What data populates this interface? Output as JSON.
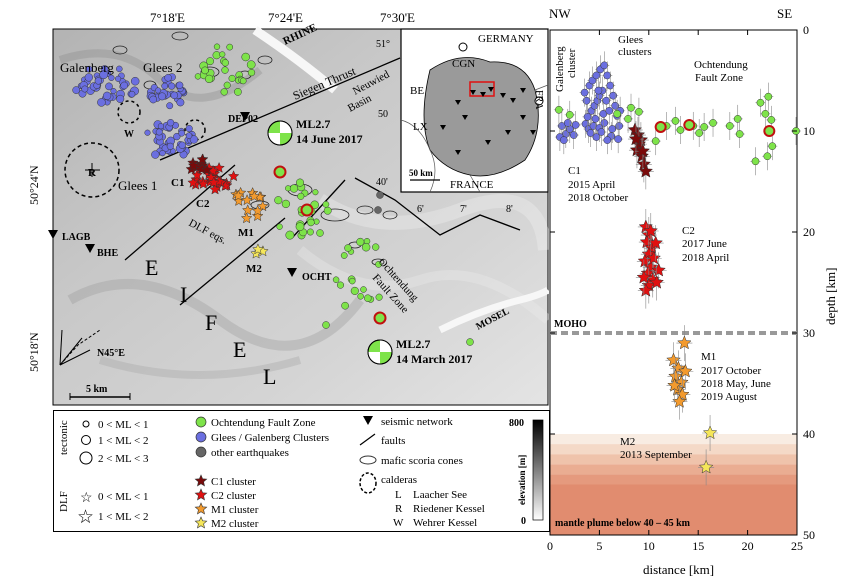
{
  "map": {
    "top_ticks": [
      "7°18'E",
      "7°24'E",
      "7°30'E"
    ],
    "left_ticks": [
      "50°24'N",
      "50°18'N"
    ],
    "labels": {
      "galenberg": "Galenberg",
      "glees2": "Glees 2",
      "glees1": "Glees 1",
      "rhine": "RHINE",
      "siegen_thrust": "Siegen Thrust",
      "neuwied": [
        "Neuwied",
        "Basin"
      ],
      "dep02": "DEP02",
      "w": "W",
      "r": "R",
      "c1": "C1",
      "c2": "C2",
      "dlf": "DLF eqs.",
      "m1": "M1",
      "m2": "M2",
      "lagb": "LAGB",
      "bhe": "BHE",
      "ocht": "OCHT",
      "eifel": [
        "E",
        "I",
        "F",
        "E",
        "L"
      ],
      "ochtendung_fault_zone": [
        "Ochtendung",
        "Fault Zone"
      ],
      "mosel": "MOSEL",
      "n45e": "N45°E",
      "grid_50": "50",
      "grid_40": "40'",
      "grid_51": "51°",
      "grid_6": "6'",
      "grid_7": "7'",
      "grid_8": "8'",
      "scale": "5 km"
    },
    "event_top": {
      "mag": "ML2.7",
      "date": "14 June 2017"
    },
    "event_bottom": {
      "mag": "ML2.7",
      "date": "14 March 2017"
    }
  },
  "inset": {
    "germany": "GERMANY",
    "cgn": "CGN",
    "be": "BE",
    "lx": "LX",
    "france": "FRANCE",
    "fra": "FRA",
    "scale": "50 km"
  },
  "legend": {
    "tectonic_title": "tectonic",
    "tectonic_items": [
      "0 < ML < 1",
      "1 < ML < 2",
      "2 < ML < 3"
    ],
    "dlf_title": "DLF",
    "dlf_items": [
      "0 < ML < 1",
      "1 < ML < 2"
    ],
    "circles": [
      {
        "label": "Ochtendung Fault Zone",
        "color": "#7ee34a"
      },
      {
        "label": "Glees / Galenberg Clusters",
        "color": "#6b6fe0"
      },
      {
        "label": "other earthquakes",
        "color": "#666666"
      }
    ],
    "stars": [
      {
        "label": "C1 cluster",
        "color": "#7a0a0a"
      },
      {
        "label": "C2 cluster",
        "color": "#e01010"
      },
      {
        "label": "M1 cluster",
        "color": "#f29a2e"
      },
      {
        "label": "M2 cluster",
        "color": "#f5e65a"
      }
    ],
    "symbols": {
      "network": "seismic network",
      "faults": "faults",
      "scoria": "mafic scoria cones",
      "calderas": "calderas",
      "caldera_items": [
        {
          "k": "L",
          "v": "Laacher See"
        },
        {
          "k": "R",
          "v": "Riedener Kessel"
        },
        {
          "k": "W",
          "v": "Wehrer Kessel"
        }
      ]
    },
    "elevation": {
      "label": "elevation [m]",
      "max": "800",
      "min": "0"
    }
  },
  "section": {
    "nw": "NW",
    "se": "SE",
    "xlabel": "distance [km]",
    "ylabel": "depth [km]",
    "galenberg_cluster": [
      "Galenberg",
      "cluster"
    ],
    "glees_clusters": [
      "Glees",
      "clusters"
    ],
    "ochtendung": [
      "Ochtendung",
      "Fault Zone"
    ],
    "c1": [
      "C1",
      "2015 April",
      "2018 October"
    ],
    "c2": [
      "C2",
      "2017 June",
      "2018 April"
    ],
    "m1": [
      "M1",
      "2017 October",
      "2018 May, June",
      "2019 August"
    ],
    "m2": [
      "M2",
      "2013 September"
    ],
    "moho": "MOHO",
    "plume": "mantle plume below 40 – 45 km"
  },
  "chart_data": {
    "type": "scatter",
    "xlabel": "distance [km]",
    "ylabel": "depth [km]",
    "xlim": [
      0,
      25
    ],
    "ylim": [
      50,
      0
    ],
    "xticks": [
      0,
      5,
      10,
      15,
      20,
      25
    ],
    "yticks": [
      0,
      10,
      20,
      30,
      40,
      50
    ],
    "series": [
      {
        "name": "Glees / Galenberg Clusters",
        "color": "#6b6fe0",
        "points": [
          [
            1.2,
            9.5
          ],
          [
            1.6,
            10.3
          ],
          [
            2.0,
            9.8
          ],
          [
            2.4,
            10.4
          ],
          [
            1.0,
            10.6
          ],
          [
            1.8,
            9.2
          ],
          [
            2.6,
            9.4
          ],
          [
            1.4,
            10.9
          ],
          [
            3.6,
            9.3
          ],
          [
            3.9,
            9.8
          ],
          [
            4.1,
            10.2
          ],
          [
            4.4,
            9.5
          ],
          [
            4.7,
            10.6
          ],
          [
            5.0,
            9.7
          ],
          [
            5.2,
            10.1
          ],
          [
            5.5,
            9.2
          ],
          [
            3.8,
            8.6
          ],
          [
            4.2,
            8.0
          ],
          [
            4.5,
            7.5
          ],
          [
            4.8,
            7.0
          ],
          [
            5.0,
            6.5
          ],
          [
            5.3,
            6.0
          ],
          [
            4.0,
            5.5
          ],
          [
            4.3,
            5.0
          ],
          [
            4.7,
            4.5
          ],
          [
            5.1,
            3.9
          ],
          [
            5.5,
            3.5
          ],
          [
            5.8,
            4.5
          ],
          [
            6.1,
            5.5
          ],
          [
            6.4,
            6.5
          ],
          [
            6.6,
            7.5
          ],
          [
            6.8,
            8.5
          ],
          [
            7.0,
            9.5
          ],
          [
            6.2,
            10.5
          ],
          [
            5.8,
            10.9
          ],
          [
            5.4,
            8.3
          ],
          [
            4.6,
            8.8
          ],
          [
            4.9,
            6.0
          ],
          [
            5.7,
            7.0
          ],
          [
            6.0,
            8.0
          ],
          [
            3.7,
            7.0
          ],
          [
            3.5,
            6.2
          ],
          [
            6.3,
            9.8
          ],
          [
            6.9,
            10.8
          ],
          [
            7.1,
            8.0
          ]
        ]
      },
      {
        "name": "Ochtendung Fault Zone",
        "color": "#7ee34a",
        "points": [
          [
            0.9,
            7.9
          ],
          [
            2.0,
            8.4
          ],
          [
            6.8,
            8.3
          ],
          [
            7.9,
            8.8
          ],
          [
            8.2,
            7.7
          ],
          [
            9.0,
            8.1
          ],
          [
            10.7,
            11.0
          ],
          [
            11.8,
            9.5
          ],
          [
            12.7,
            9.0
          ],
          [
            13.2,
            9.9
          ],
          [
            14.5,
            9.5
          ],
          [
            15.1,
            10.2
          ],
          [
            15.6,
            9.6
          ],
          [
            16.5,
            9.2
          ],
          [
            18.2,
            9.5
          ],
          [
            19.0,
            8.8
          ],
          [
            19.2,
            10.3
          ],
          [
            20.8,
            13.0
          ],
          [
            21.3,
            7.2
          ],
          [
            21.8,
            8.3
          ],
          [
            22.0,
            12.5
          ],
          [
            22.4,
            8.9
          ],
          [
            22.5,
            11.5
          ],
          [
            24.9,
            10.0
          ],
          [
            22.1,
            6.6
          ]
        ]
      },
      {
        "name": "C1 cluster",
        "color": "#7a0a0a",
        "points": [
          [
            8.6,
            9.9
          ],
          [
            8.9,
            10.4
          ],
          [
            9.2,
            10.9
          ],
          [
            9.0,
            11.3
          ],
          [
            8.8,
            11.9
          ],
          [
            9.3,
            12.5
          ],
          [
            9.5,
            13.3
          ],
          [
            9.7,
            14.0
          ],
          [
            9.4,
            12.0
          ],
          [
            8.7,
            10.8
          ]
        ]
      },
      {
        "name": "C2 cluster",
        "color": "#e01010",
        "points": [
          [
            9.7,
            19.5
          ],
          [
            10.0,
            20.3
          ],
          [
            9.8,
            21.0
          ],
          [
            10.3,
            21.6
          ],
          [
            10.0,
            22.2
          ],
          [
            9.6,
            22.9
          ],
          [
            10.2,
            23.5
          ],
          [
            9.9,
            24.1
          ],
          [
            10.4,
            24.7
          ],
          [
            10.0,
            25.3
          ],
          [
            9.7,
            25.8
          ],
          [
            10.5,
            22.6
          ],
          [
            11.0,
            23.8
          ],
          [
            10.7,
            21.1
          ],
          [
            10.2,
            19.9
          ],
          [
            10.8,
            25.0
          ],
          [
            9.5,
            24.5
          ]
        ]
      },
      {
        "name": "M1 cluster",
        "color": "#f29a2e",
        "points": [
          [
            13.6,
            31.0
          ],
          [
            12.5,
            32.7
          ],
          [
            13.0,
            33.5
          ],
          [
            12.7,
            34.3
          ],
          [
            13.3,
            34.9
          ],
          [
            12.9,
            35.6
          ],
          [
            13.4,
            36.1
          ],
          [
            13.1,
            36.8
          ],
          [
            12.6,
            35.2
          ],
          [
            13.7,
            33.8
          ]
        ]
      },
      {
        "name": "M2 cluster",
        "color": "#f5e65a",
        "points": [
          [
            16.2,
            39.9
          ],
          [
            15.8,
            43.3
          ]
        ]
      }
    ],
    "annotations": [
      "MOHO",
      "mantle plume below 40 – 45 km"
    ]
  }
}
